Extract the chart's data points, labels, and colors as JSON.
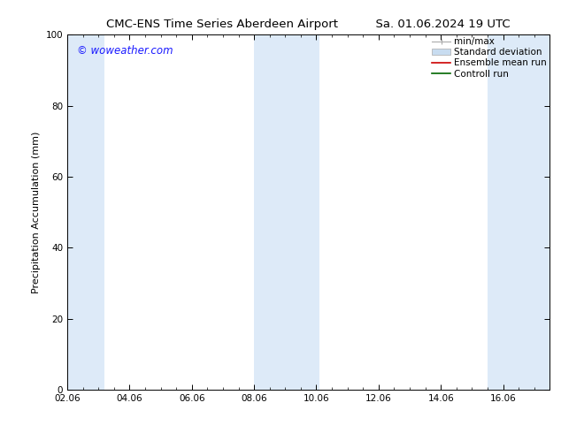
{
  "title_left": "CMC-ENS Time Series Aberdeen Airport",
  "title_right": "Sa. 01.06.2024 19 UTC",
  "ylabel": "Precipitation Accumulation (mm)",
  "watermark": "© woweather.com",
  "watermark_color": "#1a1aff",
  "xlim": [
    2.0,
    17.5
  ],
  "ylim": [
    0,
    100
  ],
  "yticks": [
    0,
    20,
    40,
    60,
    80,
    100
  ],
  "xticks": [
    "02.06",
    "04.06",
    "06.06",
    "08.06",
    "10.06",
    "12.06",
    "14.06",
    "16.06"
  ],
  "xtick_vals": [
    2,
    4,
    6,
    8,
    10,
    12,
    14,
    16
  ],
  "bg_color": "#ffffff",
  "plot_bg_color": "#ffffff",
  "shaded_bands": [
    {
      "x_start": 2.0,
      "x_end": 3.2,
      "color": "#ddeaf8"
    },
    {
      "x_start": 8.0,
      "x_end": 10.1,
      "color": "#ddeaf8"
    },
    {
      "x_start": 15.5,
      "x_end": 17.5,
      "color": "#ddeaf8"
    }
  ],
  "legend_entries": [
    {
      "label": "min/max",
      "type": "errorbar",
      "color": "#aaaaaa"
    },
    {
      "label": "Standard deviation",
      "type": "patch",
      "color": "#c8dcf0"
    },
    {
      "label": "Ensemble mean run",
      "type": "line",
      "color": "#cc0000"
    },
    {
      "label": "Controll run",
      "type": "line",
      "color": "#006600"
    }
  ],
  "title_fontsize": 9.5,
  "axis_label_fontsize": 8,
  "tick_fontsize": 7.5,
  "watermark_fontsize": 8.5,
  "legend_fontsize": 7.5
}
